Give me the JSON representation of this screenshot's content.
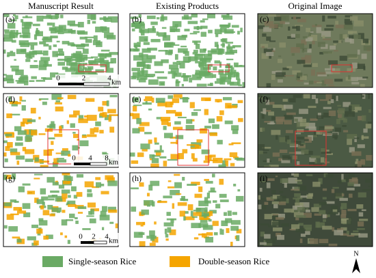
{
  "columns": [
    "Manuscript Result",
    "Existing Products",
    "Original Image"
  ],
  "panels": [
    "(a)",
    "(b)",
    "(c)",
    "(d)",
    "(e)",
    "(f)",
    "(g)",
    "(h)",
    "(i)"
  ],
  "scale_bars": [
    {
      "ticks": [
        "0",
        "2",
        "4"
      ],
      "unit": "km"
    },
    {
      "ticks": [
        "0",
        "4",
        "8"
      ],
      "unit": "km"
    },
    {
      "ticks": [
        "0",
        "2",
        "4"
      ],
      "unit": "km"
    }
  ],
  "legend": [
    {
      "name": "Single-season Rice",
      "color": "#6aaa64"
    },
    {
      "name": "Double-season Rice",
      "color": "#f5a500"
    }
  ],
  "north": "N"
}
